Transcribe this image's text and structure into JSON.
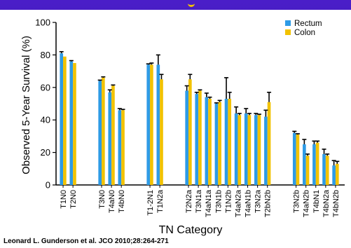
{
  "citation": "Leonard L. Gunderson et al. JCO 2010;28:264-271",
  "colors": {
    "rectum": "#2e9be6",
    "colon": "#f2c200",
    "error": "#000000"
  },
  "chart_data": {
    "type": "bar",
    "title": "",
    "xlabel": "TN Category",
    "ylabel": "Observed 5-Year Survival (%)",
    "ylim": [
      0,
      100
    ],
    "yticks": [
      0,
      20,
      40,
      60,
      80,
      100
    ],
    "legend_position": "top-right",
    "error_bars": true,
    "series": [
      {
        "name": "Rectum",
        "color": "#2e9be6"
      },
      {
        "name": "Colon",
        "color": "#f2c200"
      }
    ],
    "groups": [
      {
        "categories": [
          {
            "label": "T1N0",
            "rectum": 81,
            "colon": 79,
            "rectum_err": 1,
            "colon_err": 0
          },
          {
            "label": "T2N0",
            "rectum": 76,
            "colon": 75,
            "rectum_err": 0.5,
            "colon_err": 0
          }
        ]
      },
      {
        "categories": [
          {
            "label": "T3N0",
            "rectum": 64,
            "colon": 66,
            "rectum_err": 0.5,
            "colon_err": 0.5
          },
          {
            "label": "T4aN0",
            "rectum": 57,
            "colon": 61,
            "rectum_err": 1.5,
            "colon_err": 0.5
          },
          {
            "label": "T4bN0",
            "rectum": 46,
            "colon": 46,
            "rectum_err": 1,
            "colon_err": 0.5
          }
        ]
      },
      {
        "categories": [
          {
            "label": "T1-2N1",
            "rectum": 74,
            "colon": 74,
            "rectum_err": 0.5,
            "colon_err": 1
          },
          {
            "label": "T1N2a",
            "rectum": 74,
            "colon": 65,
            "rectum_err": 6,
            "colon_err": 3
          }
        ]
      },
      {
        "categories": [
          {
            "label": "T2N2a",
            "rectum": 58,
            "colon": 65,
            "rectum_err": 3,
            "colon_err": 3
          },
          {
            "label": "T3N1a",
            "rectum": 56,
            "colon": 58,
            "rectum_err": 1,
            "colon_err": 0.5
          },
          {
            "label": "T4aN1a",
            "rectum": 54,
            "colon": 53,
            "rectum_err": 2.5,
            "colon_err": 1
          },
          {
            "label": "T3N1b",
            "rectum": 50,
            "colon": 51,
            "rectum_err": 0.5,
            "colon_err": 1
          },
          {
            "label": "T1N2b",
            "rectum": 53,
            "colon": 53,
            "rectum_err": 13,
            "colon_err": 4
          },
          {
            "label": "T4aN2a",
            "rectum": 44,
            "colon": 43,
            "rectum_err": 4,
            "colon_err": 1
          },
          {
            "label": "T4aN1b",
            "rectum": 44,
            "colon": 43,
            "rectum_err": 3,
            "colon_err": 1
          },
          {
            "label": "T3N2a",
            "rectum": 43,
            "colon": 43,
            "rectum_err": 1,
            "colon_err": 0.5
          },
          {
            "label": "T2bN2b",
            "rectum": 42,
            "colon": 51,
            "rectum_err": 4,
            "colon_err": 6
          }
        ]
      },
      {
        "categories": [
          {
            "label": "T3N2b",
            "rectum": 32,
            "colon": 31,
            "rectum_err": 1,
            "colon_err": 0.5
          },
          {
            "label": "T4aN2b",
            "rectum": 25,
            "colon": 18,
            "rectum_err": 3,
            "colon_err": 1
          },
          {
            "label": "T4bN1",
            "rectum": 25,
            "colon": 26,
            "rectum_err": 2,
            "colon_err": 1
          },
          {
            "label": "T4bN2a",
            "rectum": 19,
            "colon": 18,
            "rectum_err": 3,
            "colon_err": 1
          },
          {
            "label": "T4bN2b",
            "rectum": 12,
            "colon": 13,
            "rectum_err": 3,
            "colon_err": 1.5
          }
        ]
      }
    ]
  }
}
